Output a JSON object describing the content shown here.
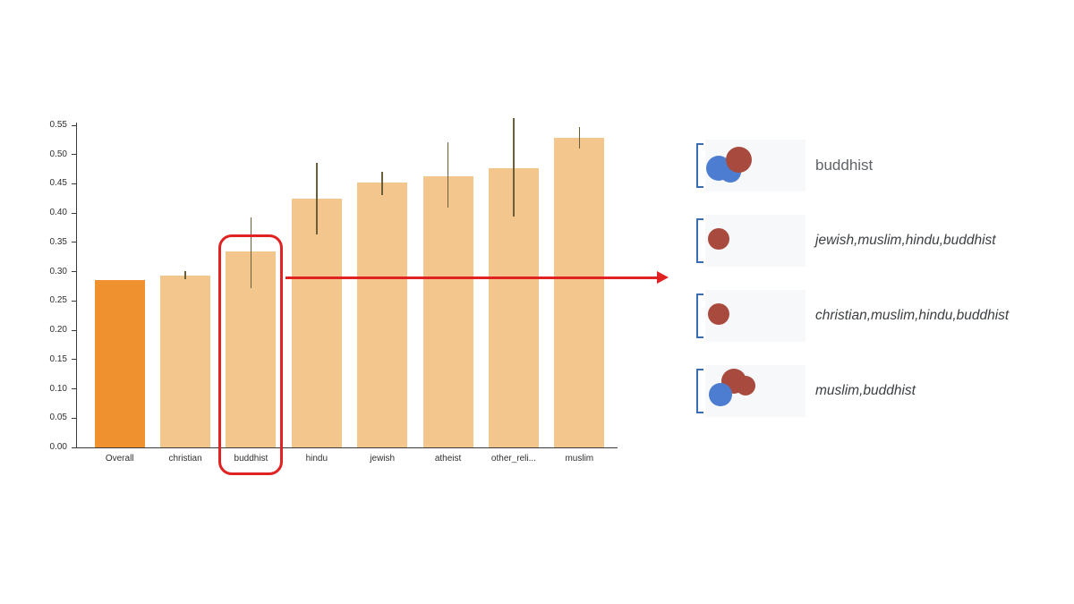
{
  "chart_data": {
    "type": "bar",
    "categories": [
      "Overall",
      "christian",
      "buddhist",
      "hindu",
      "jewish",
      "atheist",
      "other_reli...",
      "muslim"
    ],
    "values": [
      0.285,
      0.293,
      0.335,
      0.425,
      0.452,
      0.463,
      0.477,
      0.528
    ],
    "error_low": [
      0.285,
      0.287,
      0.272,
      0.364,
      0.431,
      0.41,
      0.394,
      0.51
    ],
    "error_high": [
      0.285,
      0.301,
      0.393,
      0.486,
      0.471,
      0.521,
      0.562,
      0.547
    ],
    "title": "",
    "xlabel": "",
    "ylabel": "",
    "ylim": [
      0,
      0.55
    ],
    "ytick_step": 0.05,
    "grid": false,
    "legend": "none",
    "highlight_category": "buddhist",
    "bar_color": "#F2C68C",
    "overall_bar_color": "#F0912F",
    "error_color": "#6B5F3A",
    "annotation_color": "#E02322"
  },
  "panel": {
    "rows": [
      {
        "label": "buddhist",
        "italic": false,
        "dots": [
          {
            "color": "#4C7DD0",
            "x": 1,
            "y": 18,
            "d": 28
          },
          {
            "color": "#4C7DD0",
            "x": 16,
            "y": 24,
            "d": 24
          },
          {
            "color": "#A84A3E",
            "x": 23,
            "y": 8,
            "d": 29
          }
        ]
      },
      {
        "label": "jewish,muslim,hindu,buddhist",
        "italic": true,
        "dots": [
          {
            "color": "#A84A3E",
            "x": 3,
            "y": 15,
            "d": 24
          }
        ]
      },
      {
        "label": "christian,muslim,hindu,buddhist",
        "italic": true,
        "dots": [
          {
            "color": "#A84A3E",
            "x": 3,
            "y": 15,
            "d": 24
          }
        ]
      },
      {
        "label": "muslim,buddhist",
        "italic": true,
        "dots": [
          {
            "color": "#A84A3E",
            "x": 18,
            "y": 4,
            "d": 28
          },
          {
            "color": "#A84A3E",
            "x": 34,
            "y": 12,
            "d": 22
          },
          {
            "color": "#4C7DD0",
            "x": 4,
            "y": 20,
            "d": 26
          }
        ]
      }
    ]
  }
}
